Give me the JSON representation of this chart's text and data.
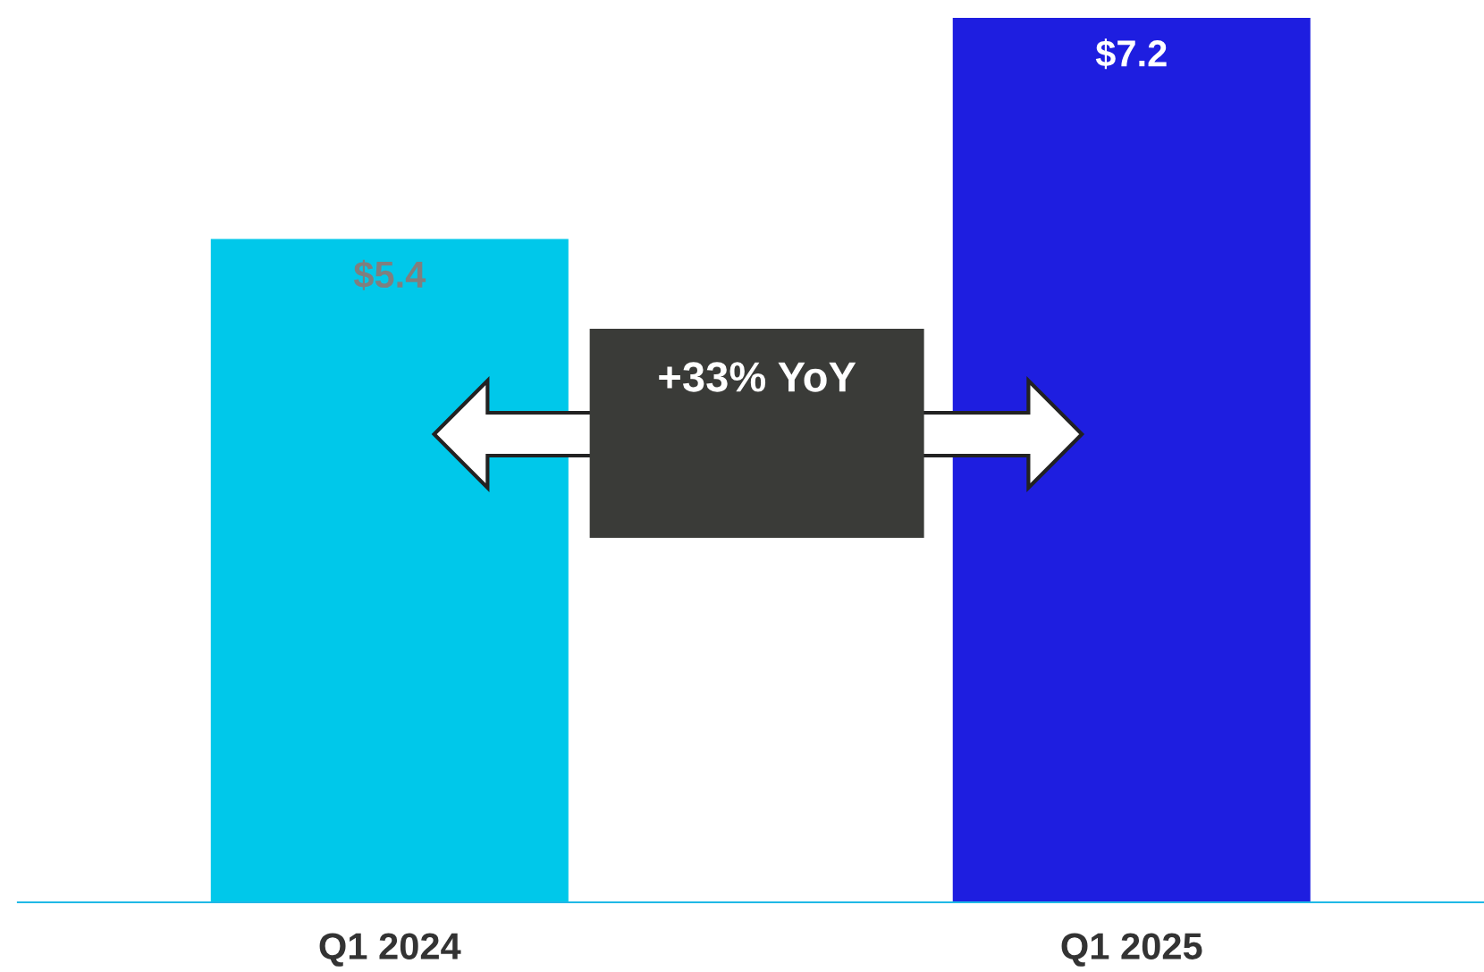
{
  "chart_data": {
    "type": "bar",
    "categories": [
      "Q1 2024",
      "Q1 2025"
    ],
    "values": [
      5.4,
      7.2
    ],
    "colors": [
      "#00c8ea",
      "#1e1ee0"
    ],
    "value_labels": [
      "$5.4",
      "$7.2"
    ],
    "annotations": [
      "+33% YoY"
    ],
    "grid": false,
    "legend": false
  }
}
